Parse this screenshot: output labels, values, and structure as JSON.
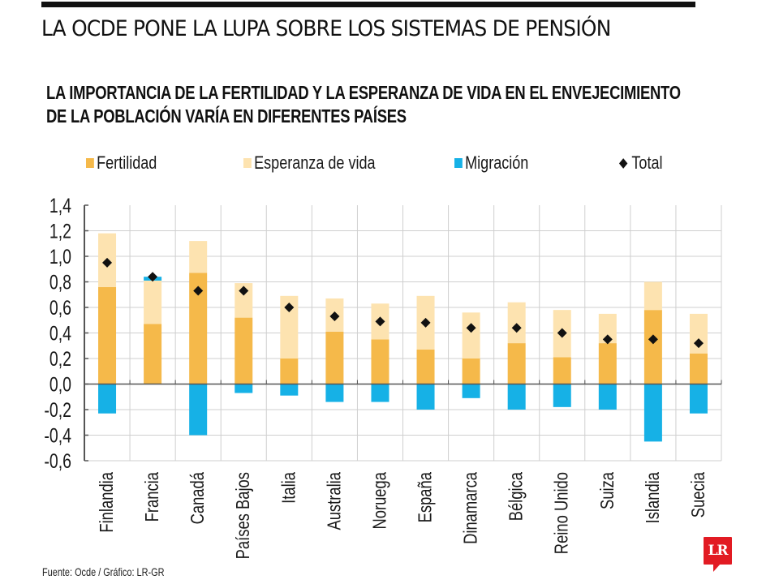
{
  "header": {
    "title": "LA OCDE PONE LA LUPA SOBRE LOS SISTEMAS DE PENSIÓN",
    "subtitle_line1": "LA IMPORTANCIA DE LA FERTILIDAD Y LA ESPERANZA DE VIDA EN EL ENVEJECIMIENTO",
    "subtitle_line2": "DE LA POBLACIÓN VARÍA EN DIFERENTES PAÍSES"
  },
  "legend": [
    {
      "label": "Fertilidad",
      "color": "#f5b94a",
      "shape": "square"
    },
    {
      "label": "Esperanza de vida",
      "color": "#fde3b0",
      "shape": "square"
    },
    {
      "label": "Migración",
      "color": "#16b1e6",
      "shape": "square"
    },
    {
      "label": "Total",
      "color": "#111111",
      "shape": "diamond"
    }
  ],
  "footer": {
    "source": "Fuente: Ocde / Gráfico: LR-GR",
    "logo": "LR",
    "logo_color": "#e21b23"
  },
  "chart_data": {
    "type": "bar",
    "stacked": true,
    "title": "LA IMPORTANCIA DE LA FERTILIDAD Y LA ESPERANZA DE VIDA EN EL ENVEJECIMIENTO DE LA POBLACIÓN VARÍA EN DIFERENTES PAÍSES",
    "xlabel": "",
    "ylabel": "",
    "ylim": [
      -0.6,
      1.4
    ],
    "yticks": [
      1.4,
      1.2,
      1.0,
      0.8,
      0.6,
      0.4,
      0.2,
      0.0,
      -0.2,
      -0.4,
      -0.6
    ],
    "ytick_labels": [
      "1,4",
      "1,2",
      "1,0",
      "0,8",
      "0,6",
      "0,4",
      "0,2",
      "0,0",
      "-0,2",
      "-0,4",
      "-0,6"
    ],
    "grid": true,
    "legend_position": "top",
    "categories": [
      "Finlandia",
      "Francia",
      "Canadá",
      "Países Bajos",
      "Italia",
      "Australia",
      "Noruega",
      "España",
      "Dinamarca",
      "Bélgica",
      "Reino Unido",
      "Suiza",
      "Islandia",
      "Suecia"
    ],
    "series": [
      {
        "name": "Fertilidad",
        "color": "#f5b94a",
        "values": [
          0.76,
          0.47,
          0.87,
          0.52,
          0.2,
          0.41,
          0.35,
          0.27,
          0.2,
          0.32,
          0.21,
          0.32,
          0.58,
          0.24
        ]
      },
      {
        "name": "Esperanza de vida",
        "color": "#fde3b0",
        "values": [
          0.42,
          0.34,
          0.25,
          0.27,
          0.49,
          0.26,
          0.28,
          0.42,
          0.36,
          0.32,
          0.37,
          0.23,
          0.22,
          0.31
        ]
      },
      {
        "name": "Migración",
        "color": "#16b1e6",
        "values": [
          -0.23,
          0.03,
          -0.4,
          -0.07,
          -0.09,
          -0.14,
          -0.14,
          -0.2,
          -0.11,
          -0.2,
          -0.18,
          -0.2,
          -0.45,
          -0.23
        ]
      },
      {
        "name": "Total",
        "color": "#111111",
        "marker": "diamond",
        "values": [
          0.95,
          0.84,
          0.73,
          0.73,
          0.6,
          0.53,
          0.49,
          0.48,
          0.44,
          0.44,
          0.4,
          0.35,
          0.35,
          0.32
        ]
      }
    ]
  }
}
